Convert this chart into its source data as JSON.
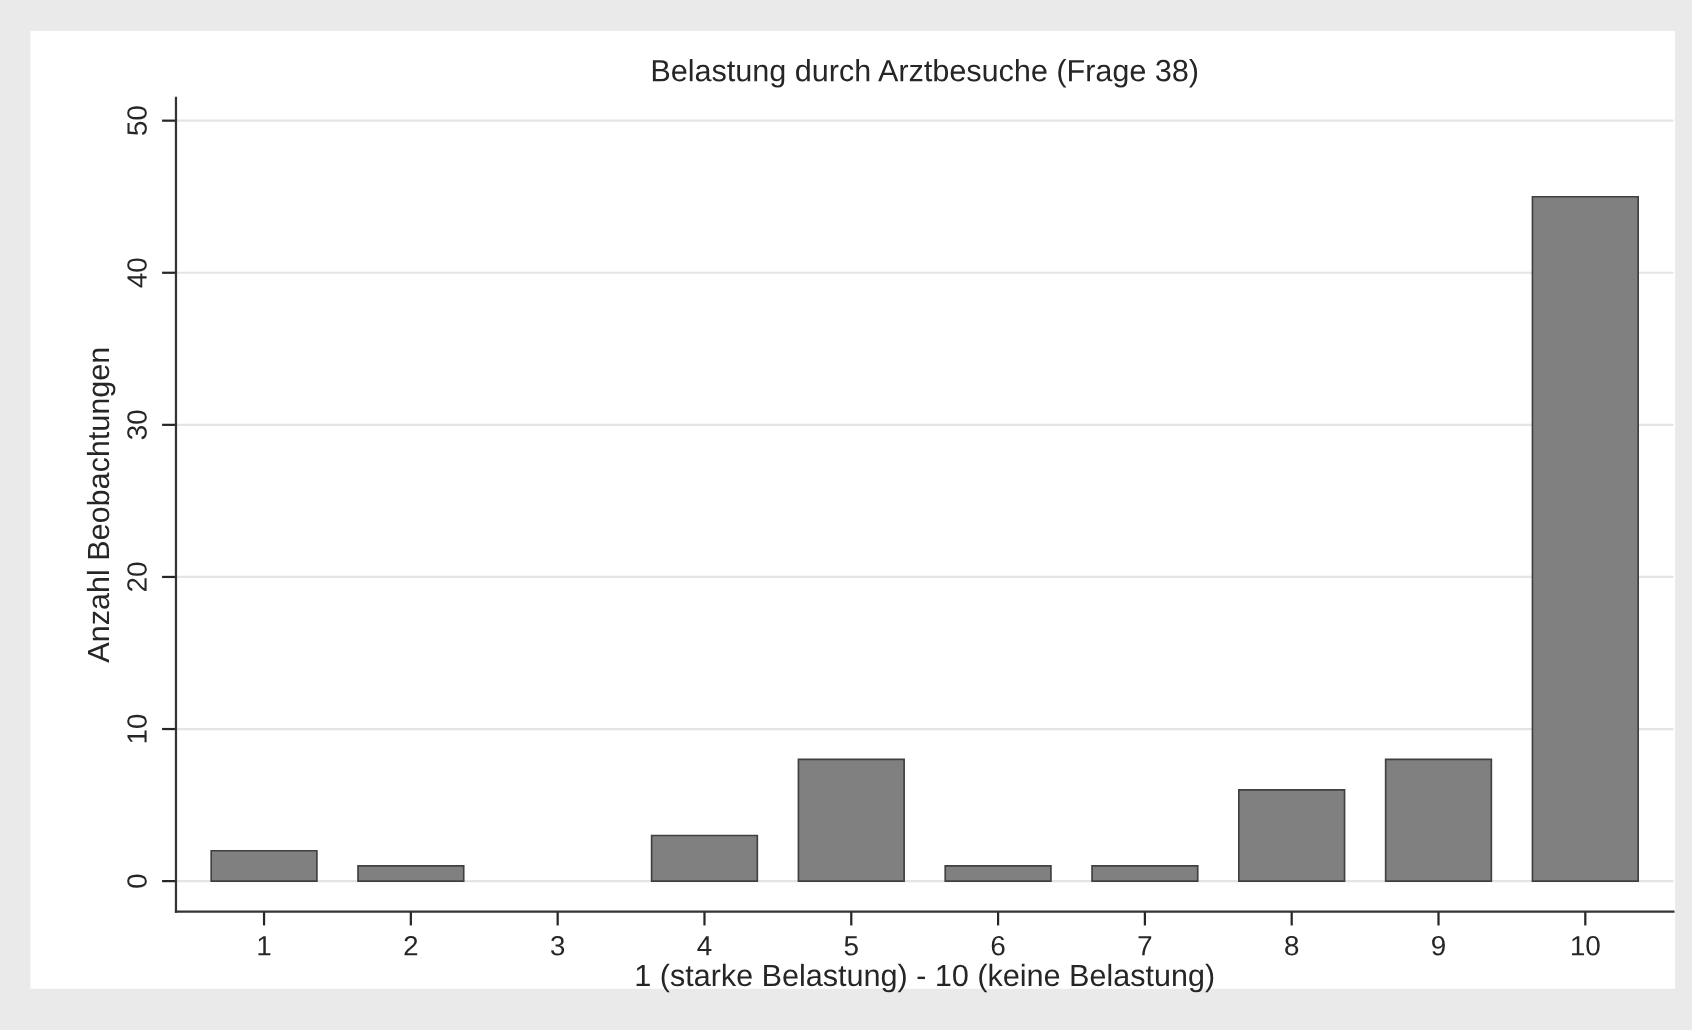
{
  "chart_data": {
    "type": "bar",
    "title": "Belastung durch Arztbesuche (Frage 38)",
    "xlabel": "1 (starke Belastung) - 10 (keine Belastung)",
    "ylabel": "Anzahl Beobachtungen",
    "categories": [
      "1",
      "2",
      "3",
      "4",
      "5",
      "6",
      "7",
      "8",
      "9",
      "10"
    ],
    "values": [
      2,
      1,
      0,
      3,
      8,
      1,
      1,
      6,
      8,
      45
    ],
    "color": "#808080",
    "ylim": [
      -2,
      51.5
    ],
    "yticks": [
      0,
      10,
      20,
      30,
      40,
      50
    ],
    "grid": "y",
    "legend": false
  }
}
